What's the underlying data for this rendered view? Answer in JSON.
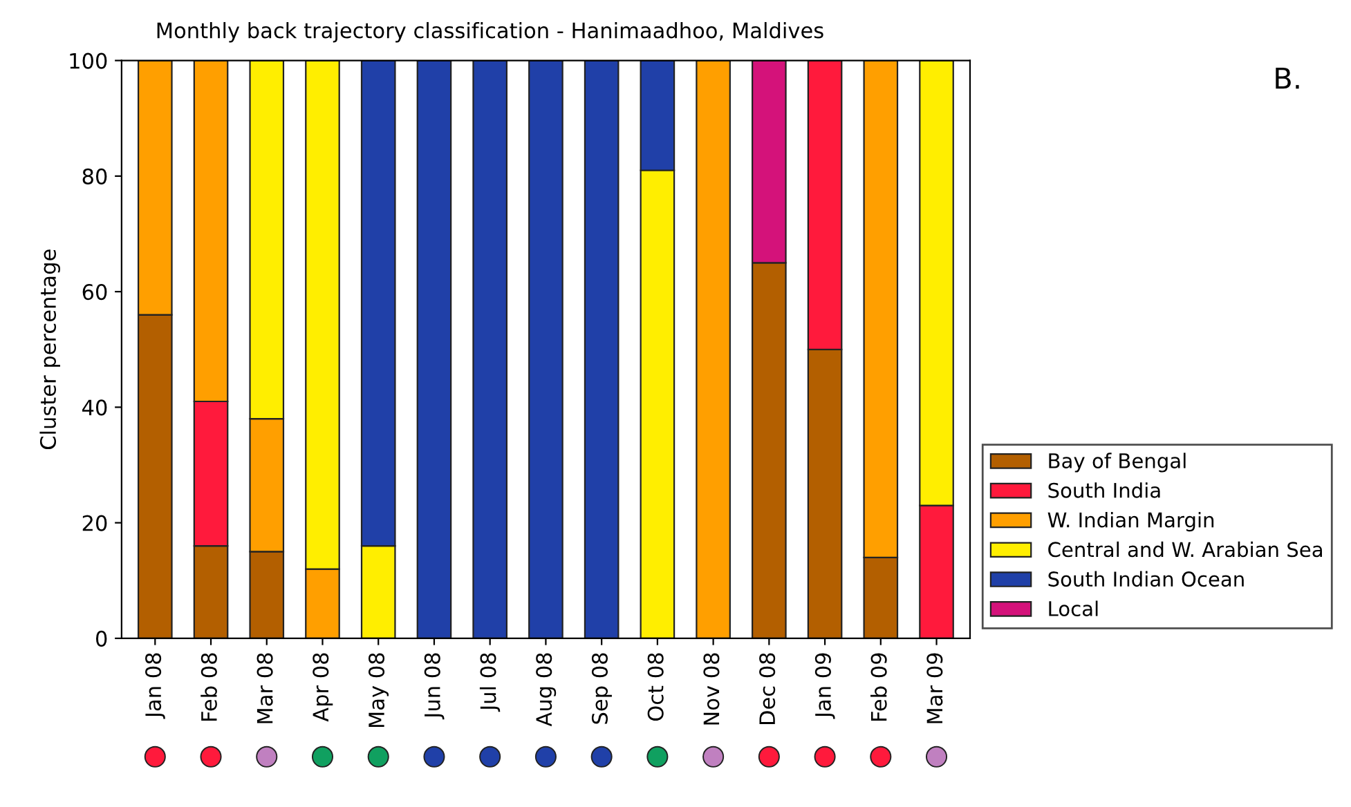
{
  "chart_data": {
    "type": "bar",
    "stacked": true,
    "title": "Monthly back trajectory classification - Hanimaadhoo, Maldives",
    "ylabel": "Cluster percentage",
    "categories": [
      "Jan 08",
      "Feb 08",
      "Mar 08",
      "Apr 08",
      "May 08",
      "Jun 08",
      "Jul 08",
      "Aug 08",
      "Sep 08",
      "Oct 08",
      "Nov 08",
      "Dec 08",
      "Jan 09",
      "Feb 09",
      "Mar 09"
    ],
    "series": [
      {
        "name": "Bay of Bengal",
        "color": "#b35f00",
        "values": [
          56,
          16,
          15,
          0,
          0,
          0,
          0,
          0,
          0,
          0,
          0,
          65,
          50,
          14,
          0
        ]
      },
      {
        "name": "South India",
        "color": "#ff1a3c",
        "values": [
          0,
          25,
          0,
          0,
          0,
          0,
          0,
          0,
          0,
          0,
          0,
          0,
          50,
          0,
          23
        ]
      },
      {
        "name": "W. Indian Margin",
        "color": "#ff9f00",
        "values": [
          44,
          59,
          23,
          12,
          0,
          0,
          0,
          0,
          0,
          0,
          100,
          0,
          0,
          86,
          0
        ]
      },
      {
        "name": "Central and W. Arabian Sea",
        "color": "#ffee00",
        "values": [
          0,
          0,
          62,
          88,
          16,
          0,
          0,
          0,
          0,
          81,
          0,
          0,
          0,
          0,
          77
        ]
      },
      {
        "name": "South Indian Ocean",
        "color": "#2040a8",
        "values": [
          0,
          0,
          0,
          0,
          84,
          100,
          100,
          100,
          100,
          19,
          0,
          0,
          0,
          0,
          0
        ]
      },
      {
        "name": "Local",
        "color": "#d4127a",
        "values": [
          0,
          0,
          0,
          0,
          0,
          0,
          0,
          0,
          0,
          0,
          0,
          35,
          0,
          0,
          0
        ]
      }
    ],
    "ylim": [
      0,
      100
    ],
    "yticks": [
      0,
      20,
      40,
      60,
      80,
      100
    ],
    "legend": "bottom right",
    "annotations": [
      "B."
    ]
  }
}
